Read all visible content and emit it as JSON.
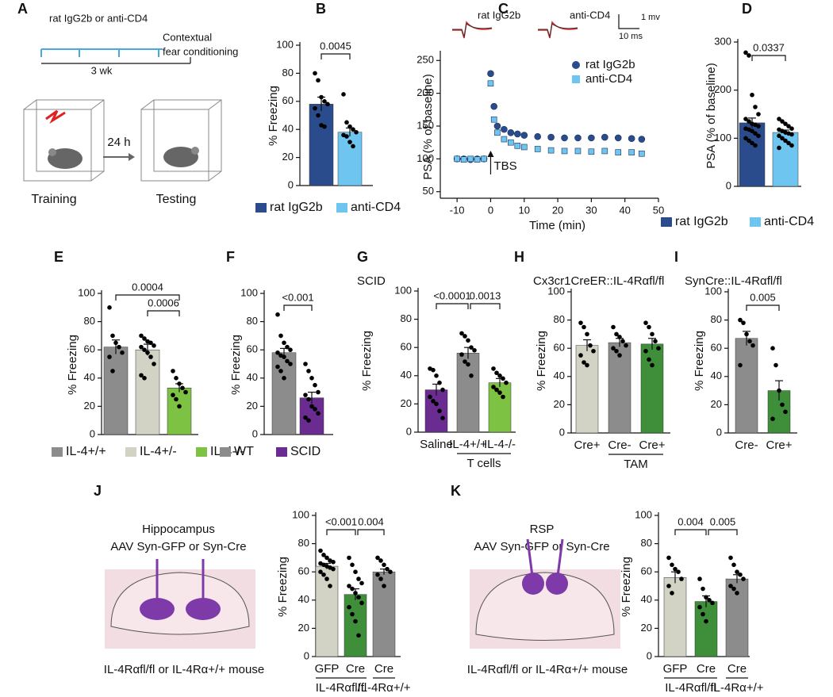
{
  "panel_a": {
    "letter": "A",
    "treatment": "rat IgG2b or anti-CD4",
    "test": [
      "Contextual",
      "fear conditioning"
    ],
    "duration": "3 wk",
    "interval": "24 h",
    "training": "Training",
    "testing": "Testing"
  },
  "chart_data": [
    {
      "panel": "B",
      "type": "bar",
      "ylabel": "% Freezing",
      "ylim": [
        0,
        100
      ],
      "yticks": [
        0,
        20,
        40,
        60,
        80,
        100
      ],
      "legend": true,
      "groups": [
        {
          "name": "rat IgG2b",
          "color": "#2b4c8c",
          "value": 58,
          "error": 5,
          "points": [
            80,
            75,
            63,
            60,
            58,
            55,
            50,
            43,
            42
          ]
        },
        {
          "name": "anti-CD4",
          "color": "#6ec6f0",
          "value": 38,
          "error": 3,
          "points": [
            65,
            45,
            42,
            40,
            38,
            36,
            35,
            31,
            28
          ]
        }
      ],
      "brackets": [
        {
          "from": 0,
          "to": 1,
          "label": "0.0045"
        }
      ]
    },
    {
      "panel": "C",
      "type": "line",
      "ylabel": "PSA (% of baseline)",
      "xlabel": "Time (min)",
      "xlim": [
        -15,
        50
      ],
      "xticks": [
        -10,
        0,
        10,
        20,
        30,
        40,
        50
      ],
      "ylim": [
        40,
        260
      ],
      "yticks": [
        50,
        100,
        150,
        200,
        250
      ],
      "annotation": "TBS",
      "insets": [
        "rat IgG2b",
        "anti-CD4"
      ],
      "scale_bar": [
        "1 mv",
        "10 ms"
      ],
      "x": [
        -10,
        -8,
        -6,
        -4,
        -2,
        0,
        1,
        2,
        4,
        6,
        8,
        10,
        14,
        18,
        22,
        26,
        30,
        34,
        38,
        42,
        45
      ],
      "series": [
        {
          "name": "rat IgG2b",
          "color": "#2b4c8c",
          "marker": "circle",
          "values": [
            100,
            100,
            99,
            100,
            100,
            230,
            180,
            150,
            145,
            140,
            138,
            136,
            134,
            133,
            132,
            132,
            132,
            133,
            132,
            131,
            130
          ]
        },
        {
          "name": "anti-CD4",
          "color": "#6ec6f0",
          "marker": "square",
          "values": [
            100,
            99,
            100,
            99,
            100,
            215,
            160,
            140,
            130,
            125,
            120,
            118,
            115,
            113,
            112,
            112,
            111,
            112,
            110,
            110,
            108
          ]
        }
      ]
    },
    {
      "panel": "D",
      "type": "bar",
      "ylabel": "PSA (% of baseline)",
      "ylim": [
        0,
        300
      ],
      "yticks": [
        0,
        100,
        200,
        300
      ],
      "legend": true,
      "groups": [
        {
          "name": "rat IgG2b",
          "color": "#2b4c8c",
          "value": 132,
          "error": 10,
          "points": [
            278,
            272,
            190,
            165,
            150,
            140,
            135,
            130,
            128,
            125,
            120,
            118,
            115,
            110,
            105,
            100,
            95,
            90,
            85
          ]
        },
        {
          "name": "anti-CD4",
          "color": "#6ec6f0",
          "value": 112,
          "error": 5,
          "points": [
            140,
            135,
            130,
            125,
            120,
            118,
            115,
            112,
            110,
            108,
            105,
            100,
            95,
            90,
            85,
            80
          ]
        }
      ],
      "brackets": [
        {
          "from": 0,
          "to": 1,
          "label": "0.0337"
        }
      ]
    },
    {
      "panel": "E",
      "type": "bar",
      "ylabel": "% Freezing",
      "ylim": [
        0,
        100
      ],
      "yticks": [
        0,
        20,
        40,
        60,
        80,
        100
      ],
      "legend": true,
      "groups": [
        {
          "name": "IL-4+/+",
          "color": "#8c8c8c",
          "value": 62,
          "error": 5,
          "points": [
            90,
            70,
            65,
            62,
            58,
            55,
            45
          ]
        },
        {
          "name": "IL-4+/-",
          "color": "#d3d3c5",
          "value": 60,
          "error": 4,
          "points": [
            70,
            68,
            66,
            65,
            63,
            62,
            60,
            58,
            55,
            50,
            42,
            40
          ]
        },
        {
          "name": "IL-4-/-",
          "color": "#7dc243",
          "value": 33,
          "error": 3,
          "points": [
            45,
            40,
            36,
            33,
            30,
            28,
            25,
            20
          ]
        }
      ],
      "brackets": [
        {
          "from": 1,
          "to": 2,
          "label": "0.0006"
        },
        {
          "from": 0,
          "to": 2,
          "label": "0.0004"
        }
      ]
    },
    {
      "panel": "F",
      "type": "bar",
      "ylabel": "% Freezing",
      "ylim": [
        0,
        100
      ],
      "yticks": [
        0,
        20,
        40,
        60,
        80,
        100
      ],
      "legend": true,
      "groups": [
        {
          "name": "WT",
          "color": "#8c8c8c",
          "value": 58,
          "error": 3,
          "points": [
            85,
            70,
            65,
            62,
            60,
            58,
            56,
            55,
            52,
            50,
            48,
            45,
            40
          ]
        },
        {
          "name": "SCID",
          "color": "#6a2c91",
          "value": 26,
          "error": 4,
          "points": [
            50,
            45,
            40,
            35,
            30,
            28,
            25,
            20,
            18,
            15,
            12,
            10
          ]
        }
      ],
      "brackets": [
        {
          "from": 0,
          "to": 1,
          "label": "<0.001"
        }
      ]
    },
    {
      "panel": "G",
      "type": "bar",
      "title": "SCID",
      "ylabel": "% Freezing",
      "ylim": [
        0,
        100
      ],
      "yticks": [
        0,
        20,
        40,
        60,
        80,
        100
      ],
      "legend": false,
      "groups": [
        {
          "name": "Saline",
          "color": "#6a2c91",
          "value": 30,
          "error": 4,
          "points": [
            45,
            44,
            40,
            35,
            30,
            25,
            22,
            20,
            15,
            10
          ]
        },
        {
          "name": "IL-4+/+",
          "color": "#8c8c8c",
          "value": 56,
          "error": 4,
          "points": [
            70,
            68,
            65,
            60,
            58,
            55,
            50,
            48,
            40
          ]
        },
        {
          "name": "IL-4-/-",
          "color": "#7dc243",
          "value": 35,
          "error": 3,
          "points": [
            45,
            42,
            40,
            38,
            35,
            32,
            30,
            28,
            25
          ]
        }
      ],
      "xgroups": [
        {
          "label": "T cells",
          "from": 1,
          "to": 2
        }
      ],
      "brackets": [
        {
          "from": 0,
          "to": 1,
          "label": "<0.0001"
        },
        {
          "from": 1,
          "to": 2,
          "label": "0.0013"
        }
      ]
    },
    {
      "panel": "H",
      "type": "bar",
      "title": "Cx3cr1CreER::IL-4Rαfl/fl",
      "ylabel": "% Freezing",
      "ylim": [
        0,
        100
      ],
      "yticks": [
        0,
        20,
        40,
        60,
        80,
        100
      ],
      "legend": false,
      "groups": [
        {
          "name": "Cre+",
          "color": "#d3d3c5",
          "value": 62,
          "error": 4,
          "points": [
            78,
            75,
            70,
            62,
            58,
            55,
            50,
            48
          ]
        },
        {
          "name": "Cre-",
          "color": "#8c8c8c",
          "value": 64,
          "error": 3,
          "points": [
            75,
            70,
            68,
            65,
            62,
            60,
            58,
            55
          ]
        },
        {
          "name": "Cre+",
          "color": "#3e8e3a",
          "value": 63,
          "error": 4,
          "points": [
            78,
            75,
            70,
            65,
            60,
            58,
            52,
            48
          ]
        }
      ],
      "xgroups": [
        {
          "label": "TAM",
          "from": 1,
          "to": 2
        }
      ],
      "brackets": []
    },
    {
      "panel": "I",
      "type": "bar",
      "title": "SynCre::IL-4Rαfl/fl",
      "ylabel": "% Freezing",
      "ylim": [
        0,
        100
      ],
      "yticks": [
        0,
        20,
        40,
        60,
        80,
        100
      ],
      "legend": false,
      "groups": [
        {
          "name": "Cre-",
          "color": "#8c8c8c",
          "value": 67,
          "error": 5,
          "points": [
            80,
            78,
            70,
            65,
            62,
            48
          ]
        },
        {
          "name": "Cre+",
          "color": "#3e8e3a",
          "value": 30,
          "error": 7,
          "points": [
            60,
            48,
            30,
            20,
            15,
            10
          ]
        }
      ],
      "brackets": [
        {
          "from": 0,
          "to": 1,
          "label": "0.005"
        }
      ]
    },
    {
      "panel": "J",
      "type": "bar",
      "ylabel": "% Freezing",
      "ylim": [
        0,
        100
      ],
      "yticks": [
        0,
        20,
        40,
        60,
        80,
        100
      ],
      "legend": false,
      "groups": [
        {
          "name": "GFP",
          "color": "#d3d3c5",
          "value": 64,
          "error": 2,
          "points": [
            75,
            72,
            70,
            68,
            67,
            66,
            65,
            64,
            63,
            62,
            60,
            58,
            55,
            50
          ]
        },
        {
          "name": "Cre",
          "color": "#3e8e3a",
          "value": 44,
          "error": 4,
          "points": [
            70,
            65,
            60,
            55,
            52,
            50,
            48,
            45,
            42,
            38,
            35,
            30,
            25,
            15
          ]
        },
        {
          "name": "Cre",
          "color": "#8c8c8c",
          "value": 60,
          "error": 2,
          "points": [
            70,
            68,
            65,
            62,
            60,
            58,
            55,
            50
          ]
        }
      ],
      "xgroups": [
        {
          "label": "IL-4Rαfl/fl",
          "from": 0,
          "to": 1
        },
        {
          "label": "IL-4Rα+/+",
          "from": 2,
          "to": 2
        }
      ],
      "brackets": [
        {
          "from": 0,
          "to": 1,
          "label": "<0.001"
        },
        {
          "from": 1,
          "to": 2,
          "label": "0.004"
        }
      ]
    },
    {
      "panel": "K",
      "type": "bar",
      "ylabel": "% Freezing",
      "ylim": [
        0,
        100
      ],
      "yticks": [
        0,
        20,
        40,
        60,
        80,
        100
      ],
      "legend": false,
      "groups": [
        {
          "name": "GFP",
          "color": "#d3d3c5",
          "value": 56,
          "error": 4,
          "points": [
            70,
            65,
            62,
            60,
            55,
            50,
            45
          ]
        },
        {
          "name": "Cre",
          "color": "#3e8e3a",
          "value": 39,
          "error": 4,
          "points": [
            55,
            48,
            42,
            40,
            38,
            35,
            30,
            25
          ]
        },
        {
          "name": "Cre",
          "color": "#8c8c8c",
          "value": 55,
          "error": 3,
          "points": [
            70,
            65,
            60,
            58,
            55,
            50,
            48,
            45
          ]
        }
      ],
      "xgroups": [
        {
          "label": "IL-4Rαfl/fl",
          "from": 0,
          "to": 1
        },
        {
          "label": "IL-4Rα+/+",
          "from": 2,
          "to": 2
        }
      ],
      "brackets": [
        {
          "from": 0,
          "to": 1,
          "label": "0.004"
        },
        {
          "from": 1,
          "to": 2,
          "label": "0.005"
        }
      ]
    }
  ],
  "panel_j_diagram": {
    "region": "Hippocampus",
    "virus": "AAV Syn-GFP or Syn-Cre",
    "mouse": "IL-4Rαfl/fl or IL-4Rα+/+ mouse"
  },
  "panel_k_diagram": {
    "region": "RSP",
    "virus": "AAV Syn-GFP or Syn-Cre",
    "mouse": "IL-4Rαfl/fl or IL-4Rα+/+ mouse"
  }
}
